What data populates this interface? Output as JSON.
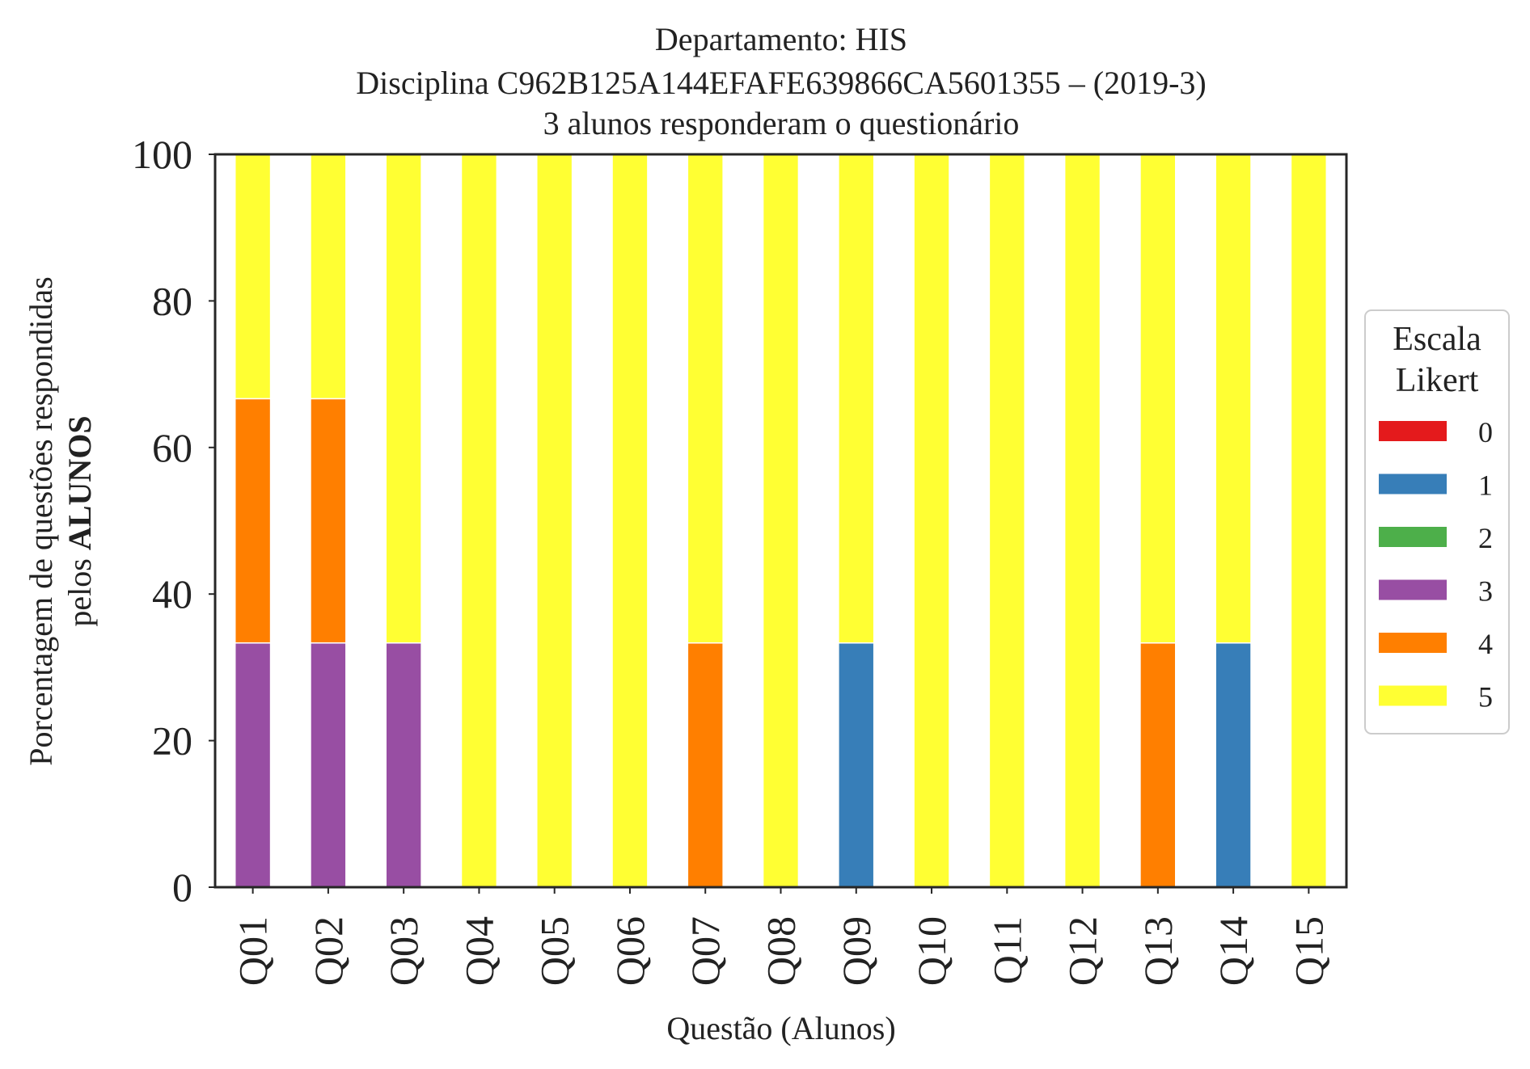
{
  "chart_data": {
    "type": "bar",
    "stacked": true,
    "title_lines": [
      "Departamento: HIS",
      "Disciplina C962B125A144EFAFE639866CA5601355 – (2019-3)",
      "3 alunos responderam o questionário"
    ],
    "xlabel": "Questão (Alunos)",
    "ylabel_line1": "Porcentagem de questões respondidas",
    "ylabel_line2_prefix": "pelos ",
    "ylabel_line2_bold": "ALUNOS",
    "ylim": [
      0,
      100
    ],
    "yticks": [
      0,
      20,
      40,
      60,
      80,
      100
    ],
    "ytick_labels": [
      "0",
      "20",
      "40",
      "60",
      "80",
      "100"
    ],
    "categories": [
      "Q01",
      "Q02",
      "Q03",
      "Q04",
      "Q05",
      "Q06",
      "Q07",
      "Q08",
      "Q09",
      "Q10",
      "Q11",
      "Q12",
      "Q13",
      "Q14",
      "Q15"
    ],
    "legend": {
      "title_lines": [
        "Escala",
        "Likert"
      ],
      "placement": "center-right-outside"
    },
    "series": [
      {
        "name": "0",
        "color": "#e41a1c",
        "values": [
          0,
          0,
          0,
          0,
          0,
          0,
          0,
          0,
          0,
          0,
          0,
          0,
          0,
          0,
          0
        ]
      },
      {
        "name": "1",
        "color": "#377eb8",
        "values": [
          0,
          0,
          0,
          0,
          0,
          0,
          0,
          0,
          33.33,
          0,
          0,
          0,
          0,
          33.33,
          0
        ]
      },
      {
        "name": "2",
        "color": "#4daf4a",
        "values": [
          0,
          0,
          0,
          0,
          0,
          0,
          0,
          0,
          0,
          0,
          0,
          0,
          0,
          0,
          0
        ]
      },
      {
        "name": "3",
        "color": "#984ea3",
        "values": [
          33.33,
          33.33,
          33.33,
          0,
          0,
          0,
          0,
          0,
          0,
          0,
          0,
          0,
          0,
          0,
          0
        ]
      },
      {
        "name": "4",
        "color": "#ff7f00",
        "values": [
          33.33,
          33.33,
          0,
          0,
          0,
          0,
          33.33,
          0,
          0,
          0,
          0,
          0,
          33.33,
          0,
          0
        ]
      },
      {
        "name": "5",
        "color": "#ffff33",
        "values": [
          33.34,
          33.34,
          66.67,
          100,
          100,
          100,
          66.67,
          100,
          66.67,
          100,
          100,
          100,
          66.67,
          66.67,
          100
        ]
      }
    ],
    "grid": false
  }
}
